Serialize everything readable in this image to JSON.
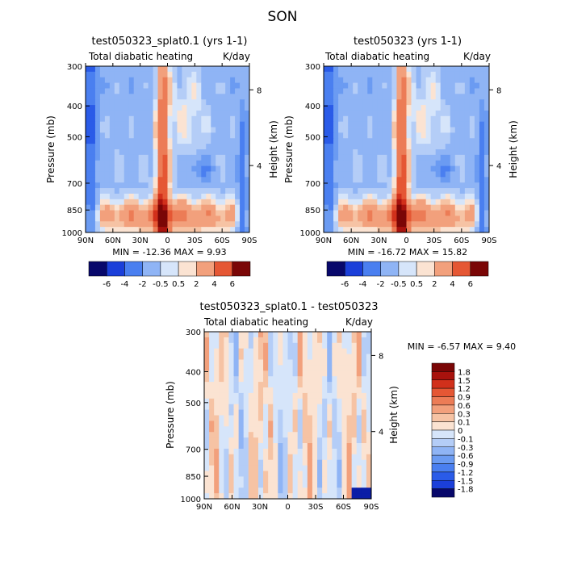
{
  "figure_title": "SON",
  "chart_data": [
    {
      "type": "heatmap",
      "title": "test050323_splat0.1 (yrs 1-1)",
      "left_label": "Total diabatic heating",
      "right_label": "K/day",
      "ylabel": "Pressure (mb)",
      "ylabel2": "Height (km)",
      "yticks": [
        "300",
        "400",
        "500",
        "700",
        "850",
        "1000"
      ],
      "yticks2": [
        "8",
        "4"
      ],
      "xticks": [
        "90N",
        "60N",
        "30N",
        "0",
        "30S",
        "60S",
        "90S"
      ],
      "xlim": [
        "90N",
        "90S"
      ],
      "ylim": [
        1000,
        300
      ],
      "stats": "MIN = -12.36   MAX =   9.93",
      "colorbar_labels": [
        "-6",
        "-4",
        "-2",
        "-0.5",
        "0.5",
        "2",
        "4",
        "6"
      ],
      "colorbar_orientation": "horizontal",
      "pattern": "field"
    },
    {
      "type": "heatmap",
      "title": "test050323 (yrs 1-1)",
      "left_label": "Total diabatic heating",
      "right_label": "K/day",
      "ylabel": "Pressure (mb)",
      "ylabel2": "Height (km)",
      "yticks": [
        "300",
        "400",
        "500",
        "700",
        "850",
        "1000"
      ],
      "yticks2": [
        "8",
        "4"
      ],
      "xticks": [
        "90N",
        "60N",
        "30N",
        "0",
        "30S",
        "60S",
        "90S"
      ],
      "xlim": [
        "90N",
        "90S"
      ],
      "ylim": [
        1000,
        300
      ],
      "stats": "MIN = -16.72   MAX =  15.82",
      "colorbar_labels": [
        "-6",
        "-4",
        "-2",
        "-0.5",
        "0.5",
        "2",
        "4",
        "6"
      ],
      "colorbar_orientation": "horizontal",
      "pattern": "field"
    },
    {
      "type": "heatmap",
      "title": "test050323_splat0.1 - test050323",
      "left_label": "Total diabatic heating",
      "right_label": "K/day",
      "ylabel": "Pressure (mb)",
      "ylabel2": "Height (km)",
      "yticks": [
        "300",
        "400",
        "500",
        "700",
        "850",
        "1000"
      ],
      "yticks2": [
        "8",
        "4"
      ],
      "xticks": [
        "90N",
        "60N",
        "30N",
        "0",
        "30S",
        "60S",
        "90S"
      ],
      "xlim": [
        "90N",
        "90S"
      ],
      "ylim": [
        1000,
        300
      ],
      "stats": "MIN =   -6.57   MAX =   9.40",
      "colorbar_labels": [
        "1.8",
        "1.5",
        "1.2",
        "0.9",
        "0.6",
        "0.3",
        "0.1",
        "0",
        "-0.1",
        "-0.3",
        "-0.6",
        "-0.9",
        "-1.2",
        "-1.5",
        "-1.8"
      ],
      "colorbar_orientation": "vertical",
      "pattern": "difference"
    }
  ],
  "colors": {
    "palette": [
      "#08086b",
      "#0b1da6",
      "#1b3fd9",
      "#2a5be8",
      "#4a7ff0",
      "#6b9bf2",
      "#8fb4f5",
      "#b4cdf7",
      "#d6e5fa",
      "#fbe3d2",
      "#f6c3a4",
      "#f2a07c",
      "#ec7c56",
      "#e55734",
      "#d1301b",
      "#a8120d",
      "#7a0606"
    ]
  }
}
